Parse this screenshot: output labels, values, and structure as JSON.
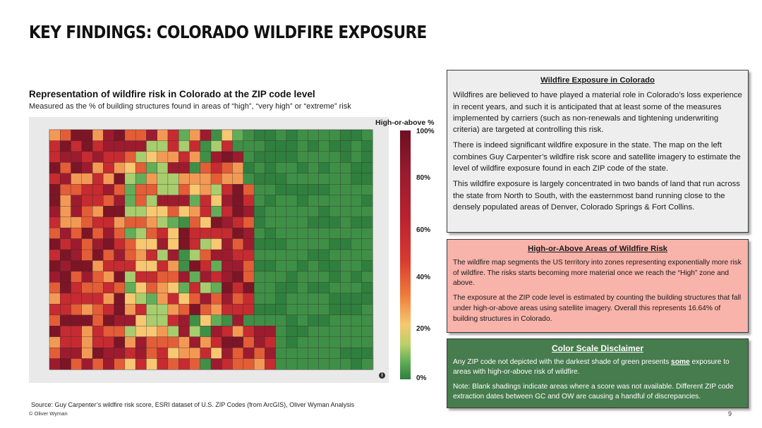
{
  "header": {
    "title": "KEY FINDINGS: COLORADO WILDFIRE EXPOSURE"
  },
  "map": {
    "heading": "Representation of wildfire risk in Colorado at the ZIP code level",
    "subheading": "Measured as the % of building structures found in areas of “high”, “very high” or “extreme” risk",
    "info_icon": "info-icon",
    "legend": {
      "title": "High-or-above %",
      "ticks": [
        "100%",
        "80%",
        "60%",
        "40%",
        "20%",
        "0%"
      ],
      "colors": [
        "#6e0f22",
        "#b9222f",
        "#ee7a3a",
        "#f7c871",
        "#62ad58",
        "#2f7f3e"
      ]
    }
  },
  "panels": {
    "exposure": {
      "title": "Wildfire Exposure in Colorado",
      "paragraphs": [
        "Wildfires are believed to have played a material role in Colorado’s loss experience in recent years, and such it is anticipated that at least some of the measures implemented by carriers (such as non-renewals and tightening underwriting criteria) are targeted at controlling this risk.",
        "There is indeed significant wildfire exposure in the state. The map on the left combines Guy Carpenter’s wildfire risk score and satellite imagery to estimate the level of wildfire exposure found in each ZIP code of the state.",
        "This wildfire exposure is largely concentrated in two bands of land that run across the state from North to South, with the easternmost band running close to the densely populated areas of Denver, Colorado Springs & Fort Collins."
      ]
    },
    "high_risk": {
      "title": "High-or-Above Areas of Wildfire Risk",
      "paragraphs": [
        "The wildfire map segments the US territory into zones representing exponentially more risk of wildfire. The risks starts becoming more material once we reach the “High” zone and above.",
        "The exposure at the ZIP code level is estimated by counting the building structures that fall under high-or-above areas using satellite imagery. Overall this represents 16.64% of building structures in Colorado."
      ]
    },
    "disclaimer": {
      "title": "Color Scale Disclaimer",
      "p1_before": "Any ZIP code not depicted with the darkest shade of green presents ",
      "p1_emphasis": "some",
      "p1_after": " exposure to areas with high-or-above risk of wildfire.",
      "p2": "Note: Blank shadings indicate areas where a score was not available. Different ZIP code extraction dates between GC and OW are causing a handful of discrepancies."
    }
  },
  "footer": {
    "source": "Source: Guy Carpenter’s wildfire risk score, ESRI dataset of U.S. ZIP Codes (from ArcGIS), Oliver Wyman Analysis",
    "copyright": "© Oliver Wyman",
    "page_number": "9"
  }
}
